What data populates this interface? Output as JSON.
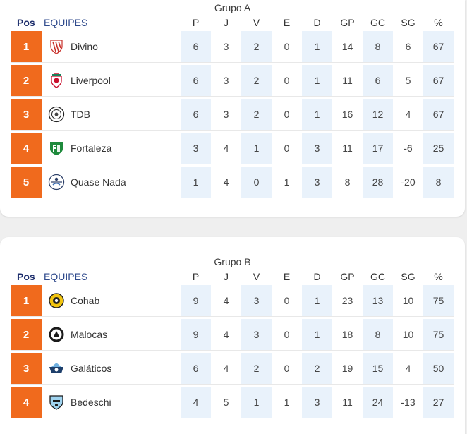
{
  "columns": {
    "pos": "Pos",
    "team": "EQUIPES",
    "stats": [
      "P",
      "J",
      "V",
      "E",
      "D",
      "GP",
      "GC",
      "SG",
      "%"
    ]
  },
  "groups": [
    {
      "title": "Grupo A",
      "rows": [
        {
          "pos": "1",
          "team": "Divino",
          "logo": "divino-crest-icon",
          "stats": [
            "6",
            "3",
            "2",
            "0",
            "1",
            "14",
            "8",
            "6",
            "67"
          ]
        },
        {
          "pos": "2",
          "team": "Liverpool",
          "logo": "liverpool-crest-icon",
          "stats": [
            "6",
            "3",
            "2",
            "0",
            "1",
            "11",
            "6",
            "5",
            "67"
          ]
        },
        {
          "pos": "3",
          "team": "TDB",
          "logo": "tdb-crest-icon",
          "stats": [
            "6",
            "3",
            "2",
            "0",
            "1",
            "16",
            "12",
            "4",
            "67"
          ]
        },
        {
          "pos": "4",
          "team": "Fortaleza",
          "logo": "fortaleza-crest-icon",
          "stats": [
            "3",
            "4",
            "1",
            "0",
            "3",
            "11",
            "17",
            "-6",
            "25"
          ]
        },
        {
          "pos": "5",
          "team": "Quase Nada",
          "logo": "quase-nada-crest-icon",
          "stats": [
            "1",
            "4",
            "0",
            "1",
            "3",
            "8",
            "28",
            "-20",
            "8"
          ]
        }
      ]
    },
    {
      "title": "Grupo B",
      "rows": [
        {
          "pos": "1",
          "team": "Cohab",
          "logo": "cohab-crest-icon",
          "stats": [
            "9",
            "4",
            "3",
            "0",
            "1",
            "23",
            "13",
            "10",
            "75"
          ]
        },
        {
          "pos": "2",
          "team": "Malocas",
          "logo": "malocas-crest-icon",
          "stats": [
            "9",
            "4",
            "3",
            "0",
            "1",
            "18",
            "8",
            "10",
            "75"
          ]
        },
        {
          "pos": "3",
          "team": "Galáticos",
          "logo": "galaticos-crest-icon",
          "stats": [
            "6",
            "4",
            "2",
            "0",
            "2",
            "19",
            "15",
            "4",
            "50"
          ]
        },
        {
          "pos": "4",
          "team": "Bedeschi",
          "logo": "bedeschi-crest-icon",
          "stats": [
            "4",
            "5",
            "1",
            "1",
            "3",
            "11",
            "24",
            "-13",
            "27"
          ]
        }
      ]
    }
  ],
  "colors": {
    "position_badge": "#f06a1d",
    "shaded_column": "#e9f2fb",
    "header_pos": "#1b2c6b",
    "header_team": "#2f4a8c"
  }
}
